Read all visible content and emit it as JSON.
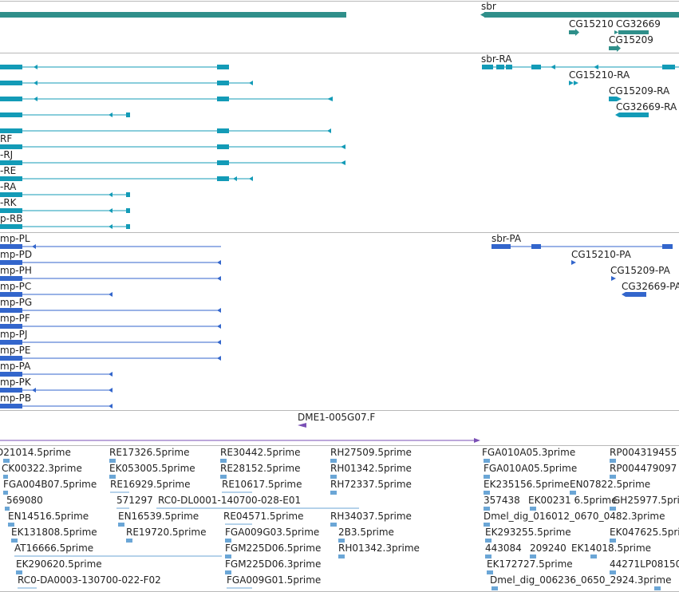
{
  "colors": {
    "gene": "#2f8f8a",
    "transcript": "#139bb7",
    "protein": "#3366cc",
    "clone": "#7a4fb5",
    "est": "#6ba6d6",
    "divider": "#b8b8b8"
  },
  "tracks": {
    "gene_labels": [
      "sbr",
      "CG15210",
      "CG32669",
      "CG15209"
    ],
    "transcript_labels": [
      "RF",
      "-RJ",
      "-RE",
      "-RA",
      "-RK",
      "p-RB",
      "sbr-RA",
      "CG15210-RA",
      "CG15209-RA",
      "CG32669-RA"
    ],
    "protein_labels": [
      "mp-PL",
      "mp-PD",
      "mp-PH",
      "mp-PC",
      "mp-PG",
      "mp-PF",
      "mp-PJ",
      "mp-PE",
      "mp-PA",
      "mp-PK",
      "mp-PB",
      "sbr-PA",
      "CG15210-PA",
      "CG15209-PA",
      "CG32669-PA"
    ],
    "clone_label": "DME1-005G07.F",
    "est_labels": [
      "D21014.5prime",
      "RE17326.5prime",
      "RE30442.5prime",
      "RH27509.5prime",
      "FGA010A05.3prime",
      "RP004319455",
      "CK00322.3prime",
      "EK053005.5prime",
      "RE28152.5prime",
      "RH01342.5prime",
      "FGA010A05.5prime",
      "RP004479097",
      "FGA004B07.5prime",
      "RE16929.5prime",
      "RE10617.5prime",
      "RH72337.5prime",
      "EK235156.5prime",
      "EN07822.5prime",
      "569080",
      "571297",
      "RC0-DL0001-140700-028-E01",
      "357438",
      "EK00231 6.5prime",
      "GH25977.5prime",
      "EN14516.5prime",
      "EN16539.5prime",
      "RE04571.5prime",
      "RH34037.5prime",
      "Dmel_dig_016012_0670_0482.3prime",
      "EK131808.5prime",
      "RE19720.5prime",
      "FGA009G03.5prime",
      "2B3.5prime",
      "EK293255.5prime",
      "EK047625.5prime",
      "AT16666.5prime",
      "FGM225D06.5prime",
      "RH01342.3prime",
      "443084",
      "209240",
      "EK14018.5prime",
      "EK290620.5prime",
      "FGM225D06.3prime",
      "EK172727.5prime",
      "44271LP08150",
      "RC0-DA0003-130700-022-F02",
      "FGA009G01.5prime",
      "Dmel_dig_006236_0650_2924.3prime"
    ]
  }
}
